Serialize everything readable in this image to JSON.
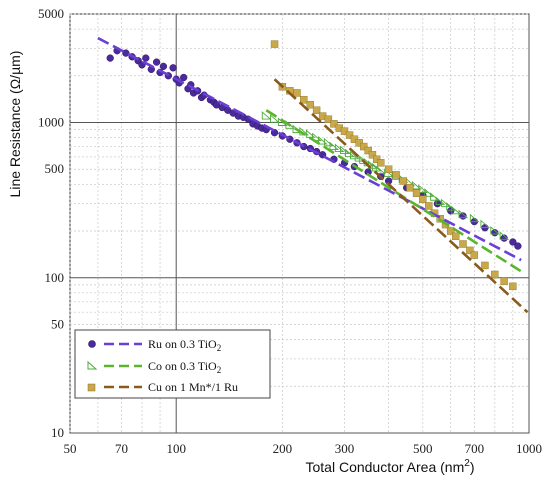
{
  "chart_data": {
    "type": "scatter",
    "title": "",
    "xlabel": "Total Conductor Area (nm",
    "xlabel_sup": "2",
    "xlabel_end": ")",
    "ylabel": "Line Resistance (Ω/µm)",
    "x_scale": "log",
    "y_scale": "log",
    "xlim": [
      50,
      1000
    ],
    "ylim": [
      10,
      5000
    ],
    "grid": true,
    "legend_position": "bottom-left",
    "x_ticks": [
      "50",
      "70",
      "100",
      "200",
      "300",
      "500",
      "700",
      "1000"
    ],
    "y_ticks": [
      "5000",
      "1000",
      "500",
      "100",
      "50",
      "10"
    ],
    "series": [
      {
        "name": "Ru on 0.3 TiO",
        "name_sub": "2",
        "marker": "circle",
        "color": "#4b2a9a",
        "fit_color": "#6a3fd6",
        "fit": [
          [
            60,
            3500
          ],
          [
            950,
            130
          ]
        ],
        "points": [
          [
            65,
            2600
          ],
          [
            68,
            2900
          ],
          [
            72,
            2800
          ],
          [
            75,
            2650
          ],
          [
            78,
            2500
          ],
          [
            80,
            2350
          ],
          [
            82,
            2600
          ],
          [
            85,
            2200
          ],
          [
            88,
            2450
          ],
          [
            90,
            2100
          ],
          [
            92,
            2300
          ],
          [
            95,
            2000
          ],
          [
            98,
            2250
          ],
          [
            100,
            1900
          ],
          [
            102,
            1800
          ],
          [
            105,
            1950
          ],
          [
            108,
            1650
          ],
          [
            110,
            1750
          ],
          [
            112,
            1550
          ],
          [
            115,
            1600
          ],
          [
            118,
            1450
          ],
          [
            120,
            1500
          ],
          [
            125,
            1400
          ],
          [
            128,
            1350
          ],
          [
            130,
            1300
          ],
          [
            135,
            1250
          ],
          [
            140,
            1200
          ],
          [
            145,
            1150
          ],
          [
            150,
            1100
          ],
          [
            155,
            1080
          ],
          [
            160,
            1050
          ],
          [
            165,
            980
          ],
          [
            170,
            950
          ],
          [
            175,
            920
          ],
          [
            180,
            900
          ],
          [
            190,
            860
          ],
          [
            200,
            820
          ],
          [
            210,
            780
          ],
          [
            220,
            740
          ],
          [
            230,
            700
          ],
          [
            240,
            680
          ],
          [
            250,
            650
          ],
          [
            260,
            620
          ],
          [
            280,
            580
          ],
          [
            300,
            550
          ],
          [
            320,
            520
          ],
          [
            350,
            480
          ],
          [
            380,
            450
          ],
          [
            400,
            420
          ],
          [
            450,
            380
          ],
          [
            500,
            340
          ],
          [
            550,
            300
          ],
          [
            600,
            270
          ],
          [
            650,
            250
          ],
          [
            700,
            230
          ],
          [
            750,
            210
          ],
          [
            800,
            195
          ],
          [
            850,
            180
          ],
          [
            900,
            170
          ],
          [
            930,
            160
          ]
        ]
      },
      {
        "name": "Co on 0.3 TiO",
        "name_sub": "2",
        "marker": "triangle",
        "color": "#4caa3a",
        "fit_color": "#5ab52c",
        "fit": [
          [
            180,
            1200
          ],
          [
            950,
            110
          ]
        ],
        "points": [
          [
            180,
            1100
          ],
          [
            190,
            1050
          ],
          [
            200,
            1000
          ],
          [
            210,
            960
          ],
          [
            220,
            900
          ],
          [
            230,
            870
          ],
          [
            240,
            840
          ],
          [
            250,
            800
          ],
          [
            260,
            760
          ],
          [
            270,
            740
          ],
          [
            280,
            700
          ],
          [
            290,
            680
          ],
          [
            300,
            660
          ],
          [
            310,
            630
          ],
          [
            320,
            610
          ],
          [
            330,
            590
          ],
          [
            340,
            570
          ],
          [
            350,
            550
          ],
          [
            360,
            530
          ],
          [
            370,
            510
          ],
          [
            380,
            490
          ],
          [
            400,
            470
          ],
          [
            420,
            450
          ],
          [
            440,
            430
          ],
          [
            460,
            410
          ],
          [
            480,
            390
          ],
          [
            500,
            370
          ],
          [
            520,
            350
          ],
          [
            540,
            330
          ],
          [
            560,
            310
          ],
          [
            580,
            300
          ],
          [
            600,
            285
          ],
          [
            620,
            270
          ],
          [
            650,
            255
          ],
          [
            700,
            240
          ],
          [
            750,
            220
          ],
          [
            800,
            200
          ],
          [
            850,
            185
          ]
        ]
      },
      {
        "name": "Cu on 1 Mn*/1 Ru",
        "name_sub": "",
        "marker": "square",
        "color": "#c9a84a",
        "fit_color": "#8a5a1a",
        "fit": [
          [
            190,
            1900
          ],
          [
            990,
            60
          ]
        ],
        "points": [
          [
            190,
            3200
          ],
          [
            200,
            1700
          ],
          [
            210,
            1600
          ],
          [
            220,
            1550
          ],
          [
            230,
            1400
          ],
          [
            240,
            1300
          ],
          [
            250,
            1200
          ],
          [
            260,
            1100
          ],
          [
            270,
            1050
          ],
          [
            280,
            980
          ],
          [
            290,
            920
          ],
          [
            300,
            880
          ],
          [
            310,
            830
          ],
          [
            320,
            780
          ],
          [
            330,
            740
          ],
          [
            340,
            700
          ],
          [
            350,
            660
          ],
          [
            360,
            620
          ],
          [
            370,
            580
          ],
          [
            380,
            550
          ],
          [
            400,
            500
          ],
          [
            420,
            460
          ],
          [
            440,
            420
          ],
          [
            460,
            380
          ],
          [
            480,
            350
          ],
          [
            500,
            320
          ],
          [
            520,
            290
          ],
          [
            540,
            260
          ],
          [
            560,
            240
          ],
          [
            580,
            220
          ],
          [
            600,
            200
          ],
          [
            620,
            185
          ],
          [
            650,
            165
          ],
          [
            680,
            150
          ],
          [
            700,
            140
          ],
          [
            750,
            120
          ],
          [
            800,
            105
          ],
          [
            850,
            95
          ],
          [
            900,
            88
          ]
        ]
      }
    ]
  }
}
